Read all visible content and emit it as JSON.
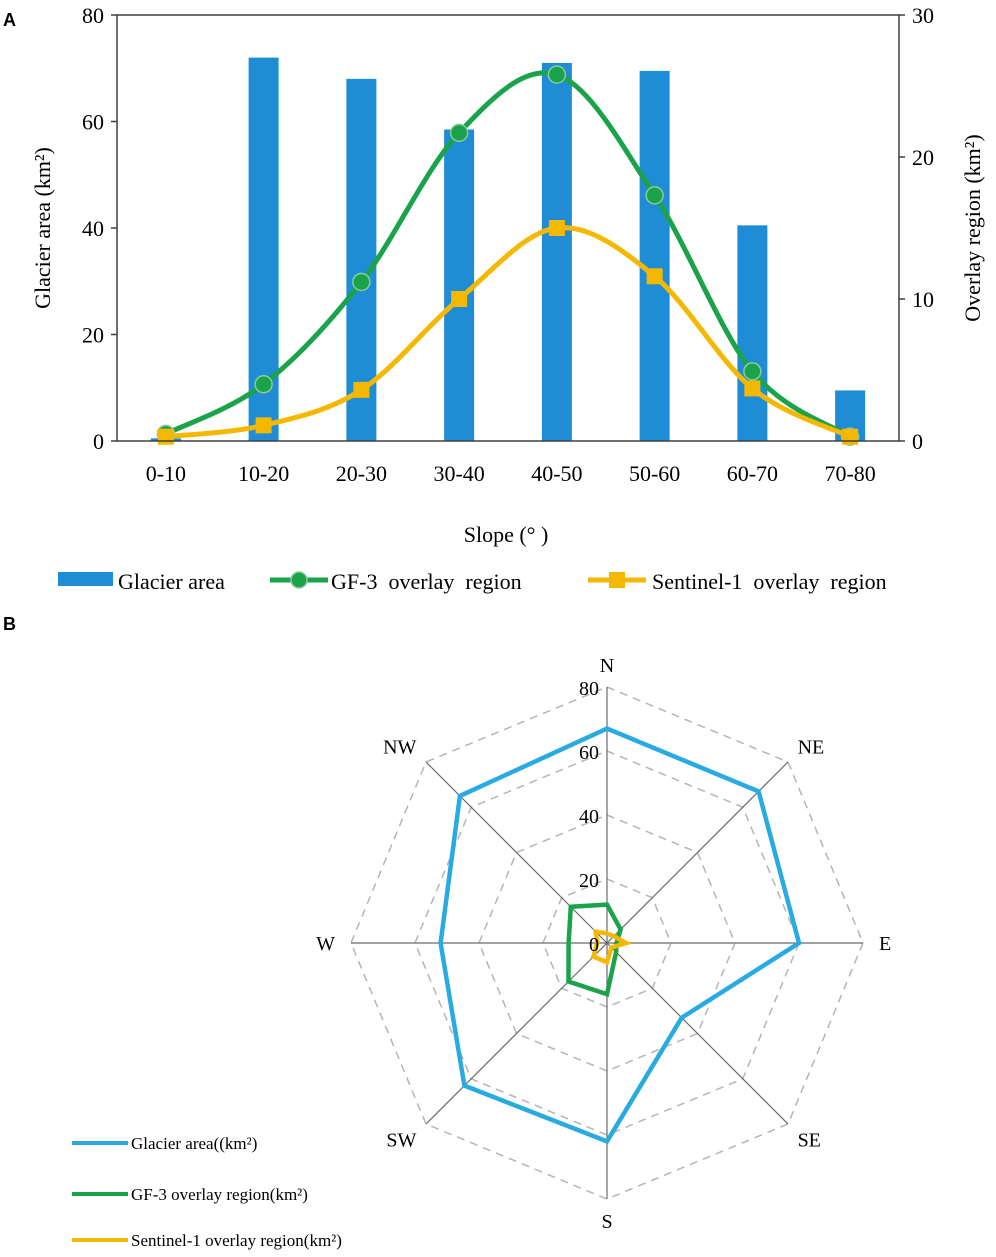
{
  "panel_a": {
    "letter": "A",
    "xlabel": "Slope (°  )",
    "ylabel_left": "Glacier area (km²)",
    "ylabel_right": "Overlay  region (km²)",
    "legend": [
      "Glacier area",
      "GF-3  overlay  region",
      "Sentinel-1  overlay  region"
    ]
  },
  "panel_b": {
    "letter": "B",
    "legend": [
      "Glacier area((km²)",
      "GF-3 overlay region(km²)",
      "Sentinel-1 overlay region(km²)"
    ]
  },
  "colors": {
    "bar": "#1f8dd6",
    "gf3": "#1aa34a",
    "gf3_marker_edge": "#8cc99a",
    "sentinel": "#f5b800",
    "radar_glacier": "#29abe2",
    "axis": "#404040",
    "grid": "#b5b5b5"
  },
  "chart_data": [
    {
      "type": "bar",
      "title": "",
      "xlabel": "Slope (°  )",
      "ylabel": "Glacier area (km²)",
      "ylabel_right": "Overlay  region (km²)",
      "categories": [
        "0-10",
        "10-20",
        "20-30",
        "30-40",
        "40-50",
        "50-60",
        "60-70",
        "70-80"
      ],
      "ylim": [
        0,
        80
      ],
      "yticks": [
        0,
        20,
        40,
        60,
        80
      ],
      "ylim_right": [
        0,
        30
      ],
      "yticks_right": [
        0,
        10,
        20,
        30
      ],
      "series": [
        {
          "name": "Glacier area",
          "axis": "left",
          "type": "bar",
          "values": [
            0.5,
            72,
            68,
            58.5,
            71,
            69.5,
            40.5,
            9.5
          ]
        },
        {
          "name": "GF-3  overlay  region",
          "axis": "right",
          "type": "line",
          "values": [
            0.5,
            4,
            11.2,
            21.7,
            25.8,
            17.3,
            4.9,
            0.3
          ]
        },
        {
          "name": "Sentinel-1  overlay  region",
          "axis": "right",
          "type": "line",
          "values": [
            0.3,
            1.1,
            3.6,
            10,
            15,
            11.6,
            3.7,
            0.3
          ]
        }
      ]
    },
    {
      "type": "radar",
      "title": "",
      "categories": [
        "N",
        "NE",
        "E",
        "SE",
        "S",
        "SW",
        "W",
        "NW"
      ],
      "rlim": [
        0,
        80
      ],
      "rticks": [
        0,
        20,
        40,
        60,
        80
      ],
      "series": [
        {
          "name": "Glacier area((km²)",
          "values": [
            67,
            67,
            60,
            33,
            62,
            63,
            52,
            65
          ]
        },
        {
          "name": "GF-3 overlay region(km²)",
          "values": [
            12,
            6,
            3,
            4,
            16,
            17,
            12,
            16
          ]
        },
        {
          "name": "Sentinel-1 overlay region(km²)",
          "values": [
            3,
            3,
            6,
            2,
            6,
            6,
            3,
            5
          ]
        }
      ]
    }
  ]
}
